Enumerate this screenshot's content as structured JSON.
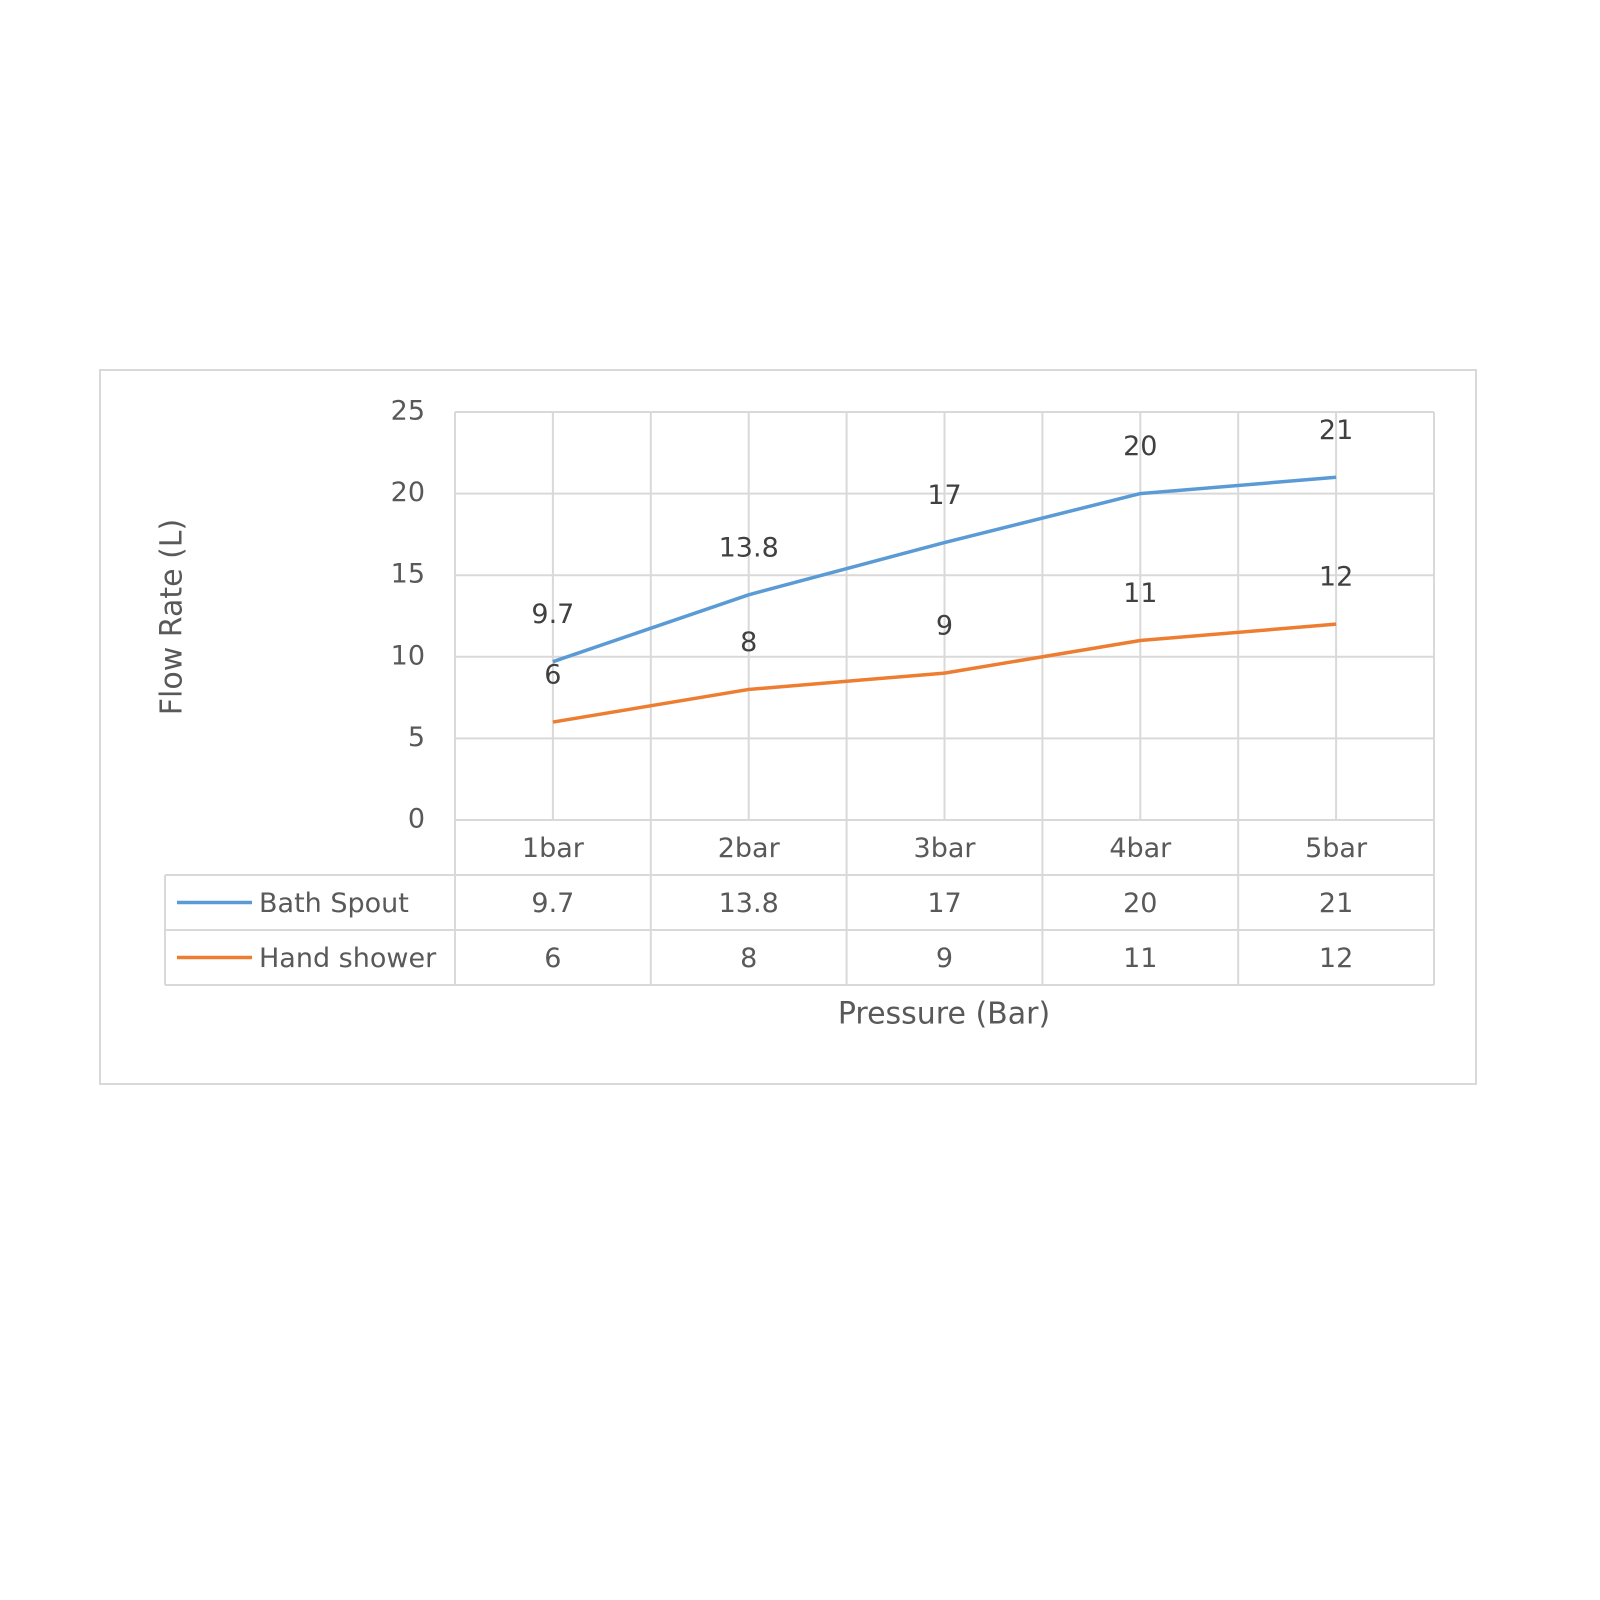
{
  "chart_data": {
    "type": "line",
    "x_label": "Pressure (Bar)",
    "y_label": "Flow Rate (L)",
    "categories": [
      "1bar",
      "2bar",
      "3bar",
      "4bar",
      "5bar"
    ],
    "series": [
      {
        "name": "Bath Spout",
        "color": "#5b9bd5",
        "values": [
          9.7,
          13.8,
          17,
          20,
          21
        ]
      },
      {
        "name": "Hand shower",
        "color": "#ed7d31",
        "values": [
          6,
          8,
          9,
          11,
          12
        ]
      }
    ],
    "ylim": [
      0,
      25
    ],
    "yticks": [
      0,
      5,
      10,
      15,
      20,
      25
    ],
    "grid": true,
    "data_labels": true,
    "data_table": true
  }
}
